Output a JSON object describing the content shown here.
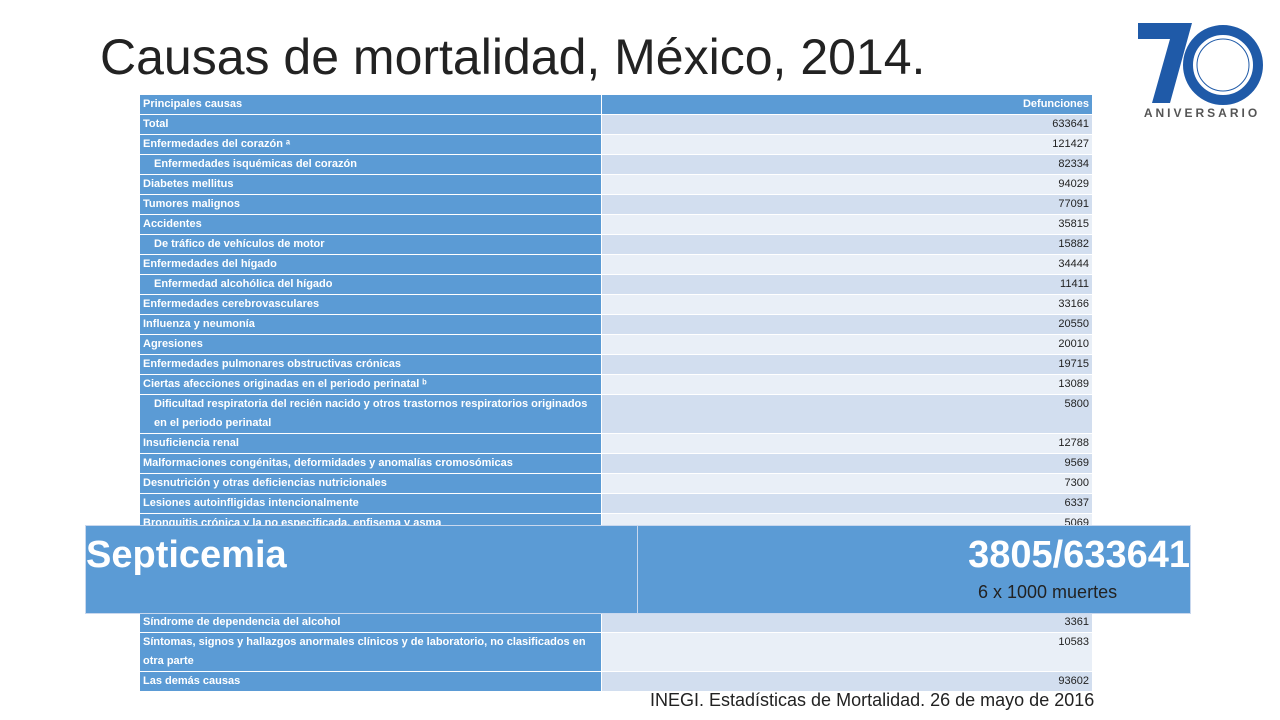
{
  "title": "Causas de mortalidad, México, 2014.",
  "logo": {
    "number": "70",
    "text": "ANIVERSARIO"
  },
  "table": {
    "header": [
      "Principales causas",
      "Defunciones"
    ],
    "rows": [
      [
        "Total",
        633641
      ],
      [
        "Enfermedades del corazón ᵃ",
        121427
      ],
      [
        "Enfermedades isquémicas del corazón",
        82334
      ],
      [
        "Diabetes mellitus",
        94029
      ],
      [
        "Tumores malignos",
        77091
      ],
      [
        "Accidentes",
        35815
      ],
      [
        "De tráfico de vehículos de motor",
        15882
      ],
      [
        "Enfermedades del hígado",
        34444
      ],
      [
        "Enfermedad alcohólica del hígado",
        11411
      ],
      [
        "Enfermedades cerebrovasculares",
        33166
      ],
      [
        "Influenza y neumonía",
        20550
      ],
      [
        "Agresiones",
        20010
      ],
      [
        "Enfermedades pulmonares obstructivas crónicas",
        19715
      ],
      [
        "Ciertas afecciones originadas en el periodo perinatal ᵇ",
        13089
      ],
      [
        "Dificultad respiratoria del recién nacido y otros trastornos respiratorios originados en el periodo perinatal",
        5800
      ],
      [
        "Insuficiencia renal",
        12788
      ],
      [
        "Malformaciones congénitas, deformidades y anomalías cromosómicas",
        9569
      ],
      [
        "Desnutrición y otras deficiencias nutricionales",
        7300
      ],
      [
        "Lesiones autoinfligidas intencionalmente",
        6337
      ],
      [
        "Bronquitis crónica y la no especificada, enfisema y asma",
        5069
      ]
    ],
    "bottom_rows": [
      [
        "Síndrome de dependencia del alcohol",
        3361
      ],
      [
        "Síntomas, signos y hallazgos anormales clínicos y de laboratorio, no clasificados en otra parte",
        10583
      ],
      [
        "Las demás causas",
        93602
      ]
    ]
  },
  "highlight": {
    "label": "Septicemia",
    "value": "3805/633641",
    "note": "6 x 1000 muertes"
  },
  "source": "INEGI. Estadísticas de Mortalidad. 26 de mayo de 2016"
}
